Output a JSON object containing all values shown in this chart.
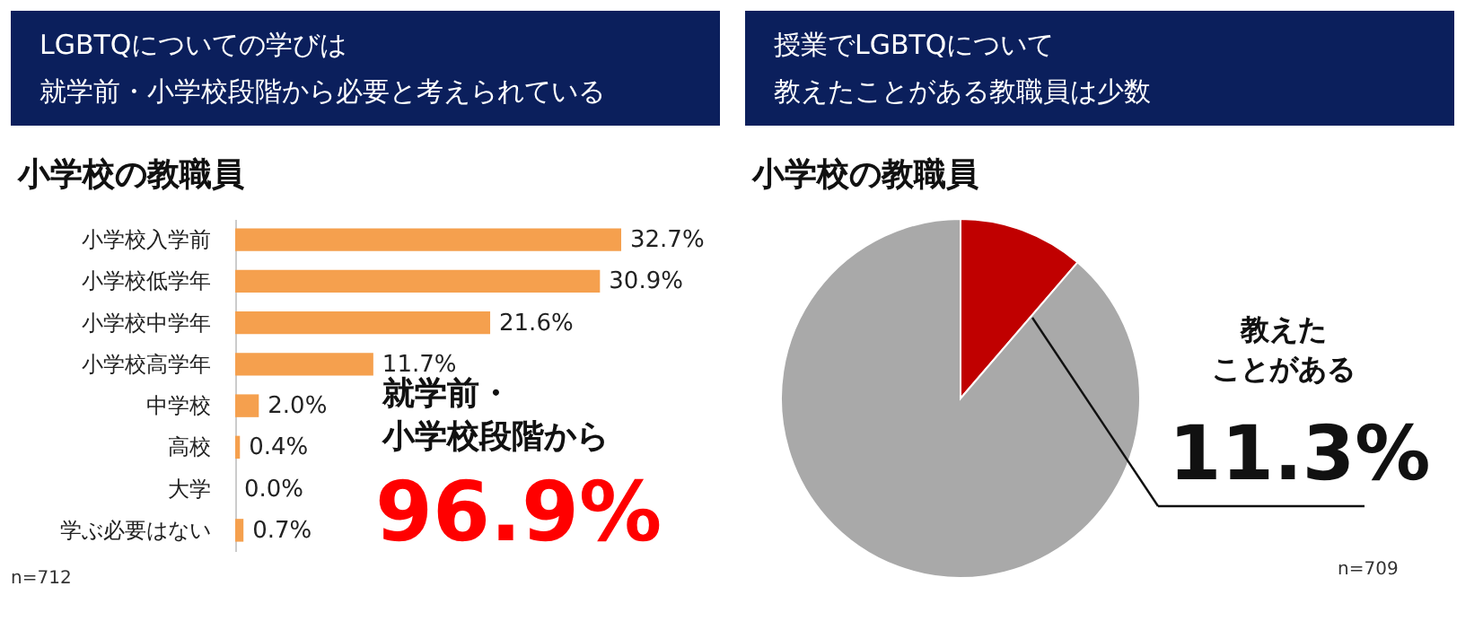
{
  "chart_data": [
    {
      "type": "bar",
      "orientation": "horizontal",
      "title": "LGBTQについての学びは",
      "subtitle": "就学前・小学校段階から必要と考えられている",
      "tick_labels": "y",
      "categories": [
        "小学校入学前",
        "小学校低学年",
        "小学校中学年",
        "小学校高学年",
        "中学校",
        "高校",
        "大学",
        "学ぶ必要はない"
      ],
      "values": [
        32.7,
        30.9,
        21.6,
        11.7,
        2.0,
        0.4,
        0.0,
        0.7
      ],
      "color": "#f5a04e",
      "value_labels": [
        "32.7%",
        "30.9%",
        "21.6%",
        "11.7%",
        "2.0%",
        "0.4%",
        "0.0%",
        "0.7%"
      ],
      "annotations": [
        "小学校の教職員",
        "就学前・",
        "小学校段階から",
        "96.9%",
        "n=712"
      ]
    },
    {
      "type": "pie",
      "title": "授業でLGBTQについて",
      "subtitle": "教えたことがある教職員は少数",
      "categories": [
        "教えたことがある",
        null
      ],
      "values": [
        11.3,
        88.7
      ],
      "colors": [
        "#c00000",
        "#a9a9a9"
      ],
      "value_labels": [
        "11.3%",
        null
      ],
      "annotations": [
        "小学校の教職員",
        "n=709"
      ]
    }
  ]
}
